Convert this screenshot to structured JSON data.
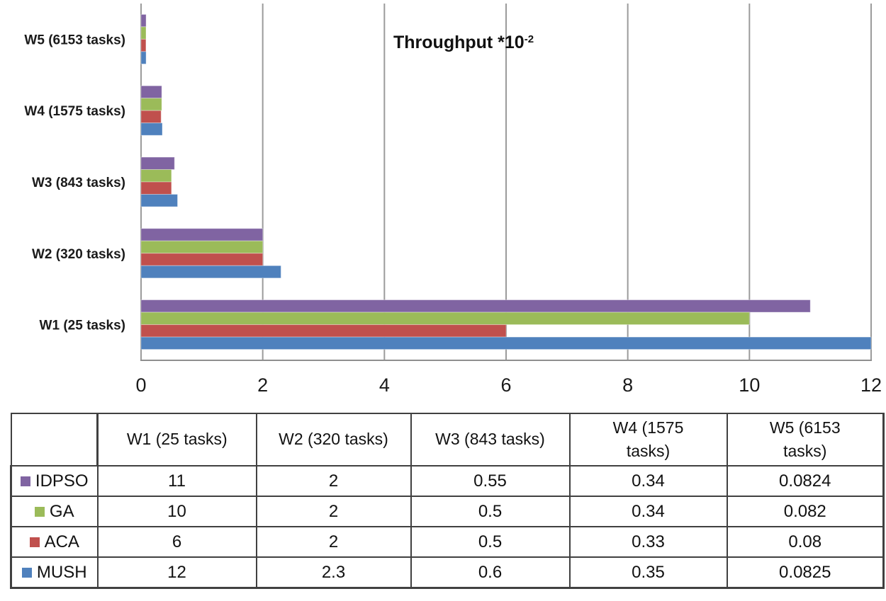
{
  "chart_data": {
    "type": "bar",
    "orientation": "horizontal",
    "title": {
      "main": "Throughput *10",
      "exponent": "-2"
    },
    "categories": [
      "W1 (25 tasks)",
      "W2 (320 tasks)",
      "W3 (843 tasks)",
      "W4 (1575 tasks)",
      "W5 (6153 tasks)"
    ],
    "series": [
      {
        "name": "IDPSO",
        "color": "#8064A2",
        "values": [
          11,
          2,
          0.55,
          0.34,
          0.0824
        ]
      },
      {
        "name": "GA",
        "color": "#9BBB59",
        "values": [
          10,
          2,
          0.5,
          0.34,
          0.082
        ]
      },
      {
        "name": "ACA",
        "color": "#C0504D",
        "values": [
          6,
          2,
          0.5,
          0.33,
          0.08
        ]
      },
      {
        "name": "MUSH",
        "color": "#4F81BD",
        "values": [
          12,
          2.3,
          0.6,
          0.35,
          0.0825
        ]
      }
    ],
    "x_axis": {
      "min": 0,
      "max": 12,
      "ticks": [
        0,
        2,
        4,
        6,
        8,
        10,
        12
      ]
    },
    "grid": true,
    "category_order": "W1 at bottom, W5 at top",
    "legend_position": "table-below-chart"
  },
  "table": {
    "corner_label": "",
    "column_headers": [
      "W1 (25 tasks)",
      "W2 (320 tasks)",
      "W3  (843 tasks)",
      "W4  (1575 tasks)",
      "W5  (6153 tasks)"
    ],
    "rows": [
      {
        "label": "IDPSO",
        "swatch_color": "#8064A2",
        "cells": [
          "11",
          "2",
          "0.55",
          "0.34",
          "0.0824"
        ]
      },
      {
        "label": "GA",
        "swatch_color": "#9BBB59",
        "cells": [
          "10",
          "2",
          "0.5",
          "0.34",
          "0.082"
        ]
      },
      {
        "label": "ACA",
        "swatch_color": "#C0504D",
        "cells": [
          "6",
          "2",
          "0.5",
          "0.33",
          "0.08"
        ]
      },
      {
        "label": "MUSH",
        "swatch_color": "#4F81BD",
        "cells": [
          "12",
          "2.3",
          "0.6",
          "0.35",
          "0.0825"
        ]
      }
    ]
  },
  "colors": {
    "gridline": "#9b9b9b",
    "axis_line": "#8f8f8f",
    "tick_text": "#1a1a1a",
    "category_text": "#1a1a1a",
    "table_border": "#404040"
  }
}
